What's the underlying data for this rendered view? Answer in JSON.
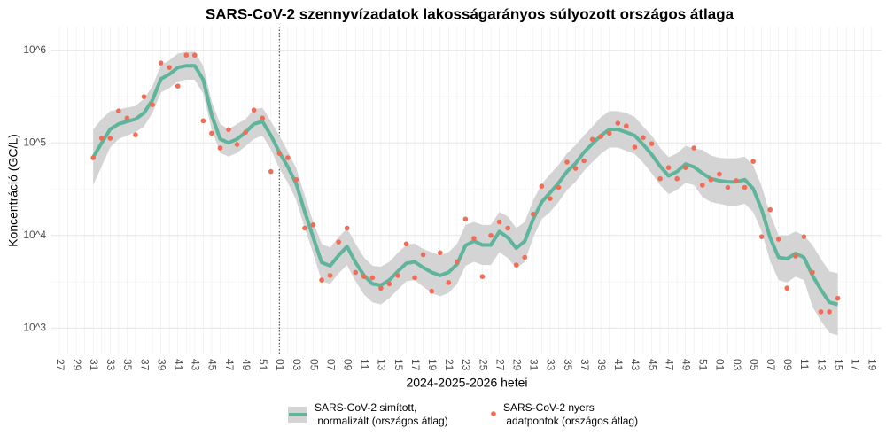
{
  "chart_data": {
    "type": "line",
    "title": "SARS-CoV-2 szennyvízadatok lakosságarányos súlyozott országos átlaga",
    "x_label": "2024-2025-2026 hetei",
    "y_label": "Koncentráció (GC/L)",
    "log_y": true,
    "grid": true,
    "year_break_line": true,
    "legend_position": "bottom",
    "categories": [
      "27",
      null,
      "29",
      null,
      "31",
      null,
      "33",
      null,
      "35",
      null,
      "37",
      null,
      "39",
      null,
      "41",
      null,
      "43",
      null,
      "45",
      null,
      "47",
      null,
      "49",
      null,
      "51",
      null,
      "01",
      null,
      "03",
      null,
      "05",
      null,
      "07",
      null,
      "09",
      null,
      "11",
      null,
      "13",
      null,
      "15",
      null,
      "17",
      null,
      "19",
      null,
      "21",
      null,
      "23",
      null,
      "25",
      null,
      "27",
      null,
      "29",
      null,
      "31",
      null,
      "33",
      null,
      "35",
      null,
      "37",
      null,
      "39",
      null,
      "41",
      null,
      "43",
      null,
      "45",
      null,
      "47",
      null,
      "49",
      null,
      "51",
      null,
      "01",
      null,
      "03",
      null,
      "05",
      null,
      "07",
      null,
      "09",
      null,
      "11",
      null,
      "13",
      null,
      "15",
      null,
      "17",
      null,
      "19"
    ],
    "ylim": [
      520,
      1800000
    ],
    "yticks": [
      {
        "value": 1000,
        "label": "10^3"
      },
      {
        "value": 10000,
        "label": "10^4"
      },
      {
        "value": 100000,
        "label": "10^5"
      },
      {
        "value": 1000000,
        "label": "10^6"
      }
    ],
    "series": [
      {
        "name": [
          "SARS-CoV-2 simított,",
          " normalizált (országos átlag)"
        ],
        "kind": "smooth",
        "color": "#5fb49c",
        "band_color": "#d4d4d4",
        "values": [
          null,
          null,
          null,
          null,
          70000,
          100000,
          140000,
          160000,
          170000,
          180000,
          210000,
          290000,
          490000,
          550000,
          650000,
          680000,
          680000,
          480000,
          200000,
          110000,
          100000,
          110000,
          130000,
          160000,
          170000,
          120000,
          79000,
          55000,
          36000,
          18000,
          9500,
          5100,
          4700,
          6100,
          7600,
          5100,
          3700,
          3000,
          2900,
          3300,
          4100,
          5000,
          5200,
          4500,
          4000,
          3700,
          4000,
          4900,
          7800,
          8700,
          7900,
          7900,
          11000,
          9500,
          7300,
          8700,
          15000,
          23000,
          29000,
          37000,
          49000,
          60000,
          79000,
          98000,
          120000,
          140000,
          140000,
          130000,
          120000,
          96000,
          75000,
          56000,
          44000,
          49000,
          59000,
          55000,
          47000,
          41000,
          39000,
          38000,
          38000,
          40000,
          32000,
          19000,
          9500,
          5800,
          5600,
          6400,
          5800,
          3700,
          2600,
          1900,
          1800,
          null,
          null,
          null,
          null
        ],
        "lower": [
          null,
          null,
          null,
          null,
          35000,
          56000,
          89000,
          110000,
          120000,
          130000,
          150000,
          210000,
          350000,
          390000,
          460000,
          480000,
          480000,
          340000,
          140000,
          78000,
          71000,
          78000,
          92000,
          110000,
          120000,
          85000,
          53000,
          37000,
          24000,
          12000,
          6400,
          3200,
          3000,
          3900,
          4800,
          3200,
          2300,
          1900,
          1800,
          2100,
          2600,
          3200,
          3300,
          2800,
          2400,
          2200,
          2400,
          3000,
          4700,
          5200,
          4800,
          4800,
          6600,
          5700,
          4400,
          5200,
          9500,
          15000,
          18000,
          23000,
          31000,
          38000,
          50000,
          62000,
          76000,
          89000,
          89000,
          82000,
          76000,
          61000,
          47000,
          35000,
          28000,
          31000,
          37000,
          35000,
          26000,
          23000,
          22000,
          21000,
          21000,
          22000,
          18000,
          11000,
          5300,
          3300,
          3100,
          3600,
          3300,
          1700,
          1200,
          890,
          840,
          null,
          null,
          null,
          null
        ],
        "upper": [
          null,
          null,
          null,
          null,
          140000,
          180000,
          220000,
          230000,
          240000,
          250000,
          300000,
          410000,
          690000,
          780000,
          920000,
          960000,
          960000,
          680000,
          280000,
          160000,
          140000,
          160000,
          180000,
          230000,
          240000,
          170000,
          120000,
          81000,
          53000,
          27000,
          14000,
          8100,
          7400,
          9600,
          12000,
          8100,
          5800,
          4700,
          4600,
          5200,
          6500,
          7900,
          8200,
          7100,
          6600,
          6100,
          6600,
          8100,
          13000,
          14000,
          13000,
          13000,
          18000,
          16000,
          12000,
          14000,
          24000,
          36000,
          46000,
          58000,
          77000,
          95000,
          120000,
          150000,
          190000,
          220000,
          220000,
          210000,
          190000,
          150000,
          120000,
          88000,
          70000,
          77000,
          93000,
          87000,
          84000,
          73000,
          69000,
          68000,
          68000,
          71000,
          57000,
          34000,
          17000,
          10000,
          10000,
          11000,
          10000,
          7900,
          5600,
          4100,
          3900,
          null,
          null,
          null,
          null
        ]
      },
      {
        "name": [
          "SARS-CoV-2 nyers",
          " adatpontok (országos átlag)"
        ],
        "kind": "points",
        "color": "#f26b55",
        "values": [
          null,
          null,
          null,
          null,
          69000,
          112000,
          112000,
          221000,
          185000,
          122000,
          315000,
          258000,
          727000,
          651000,
          410000,
          885000,
          885000,
          173000,
          127000,
          88000,
          139000,
          96000,
          130000,
          226000,
          185000,
          49000,
          77000,
          69000,
          40000,
          12000,
          13000,
          3300,
          3700,
          8500,
          12000,
          4000,
          3600,
          3500,
          2700,
          3000,
          3700,
          8100,
          3500,
          6200,
          2500,
          6500,
          3100,
          5200,
          15000,
          9300,
          3600,
          10000,
          14000,
          12000,
          4800,
          5800,
          17000,
          34000,
          25000,
          33000,
          62000,
          53000,
          64000,
          109000,
          117000,
          127000,
          163000,
          152000,
          90000,
          114000,
          98000,
          41000,
          54000,
          41000,
          54000,
          88000,
          35000,
          40000,
          46000,
          33000,
          39000,
          33000,
          63000,
          9700,
          19000,
          9100,
          2700,
          6000,
          9700,
          4000,
          1500,
          1500,
          2100,
          null,
          null,
          null,
          null
        ]
      }
    ]
  }
}
